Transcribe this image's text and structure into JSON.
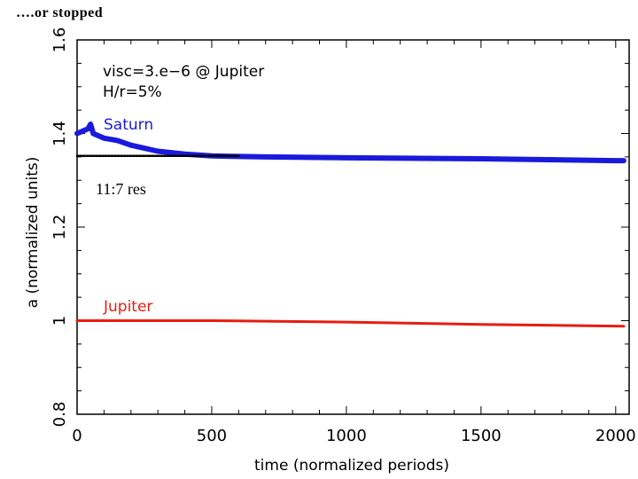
{
  "slide": {
    "title": "….or stopped"
  },
  "chart_data": {
    "type": "line",
    "title": "",
    "xlabel": "time  (normalized periods)",
    "ylabel": "a  (normalized units)",
    "xlim": [
      0,
      2050
    ],
    "ylim": [
      0.8,
      1.6
    ],
    "xticks": [
      0,
      500,
      1000,
      1500,
      2000
    ],
    "yticks": [
      0.8,
      1.0,
      1.2,
      1.4,
      1.6
    ],
    "xtick_labels": [
      "0",
      "500",
      "1000",
      "1500",
      "2000"
    ],
    "ytick_labels": [
      "0.8",
      "1",
      "1.2",
      "1.4",
      "1.6"
    ],
    "grid": false,
    "annotations": {
      "params_line1": "visc=3.e−6 @ Jupiter",
      "params_line2": "H/r=5%",
      "resonance_label": "11:7 res"
    },
    "colors": {
      "saturn": "#1a1adc",
      "jupiter": "#e81c10",
      "resonance": "#000000"
    },
    "series": [
      {
        "name": "Saturn",
        "color": "#1a1adc",
        "x": [
          0,
          20,
          40,
          50,
          60,
          80,
          100,
          150,
          200,
          300,
          400,
          500,
          700,
          1000,
          1500,
          2000,
          2030
        ],
        "y": [
          1.4,
          1.405,
          1.41,
          1.42,
          1.4,
          1.395,
          1.39,
          1.385,
          1.375,
          1.362,
          1.356,
          1.352,
          1.35,
          1.348,
          1.346,
          1.342,
          1.342
        ]
      },
      {
        "name": "11:7 res",
        "color": "#000000",
        "x": [
          0,
          200,
          400,
          600
        ],
        "y": [
          1.352,
          1.352,
          1.352,
          1.352
        ]
      },
      {
        "name": "Jupiter",
        "color": "#e81c10",
        "x": [
          0,
          500,
          1000,
          1500,
          2030
        ],
        "y": [
          1.0,
          1.0,
          0.997,
          0.992,
          0.988
        ]
      }
    ]
  }
}
